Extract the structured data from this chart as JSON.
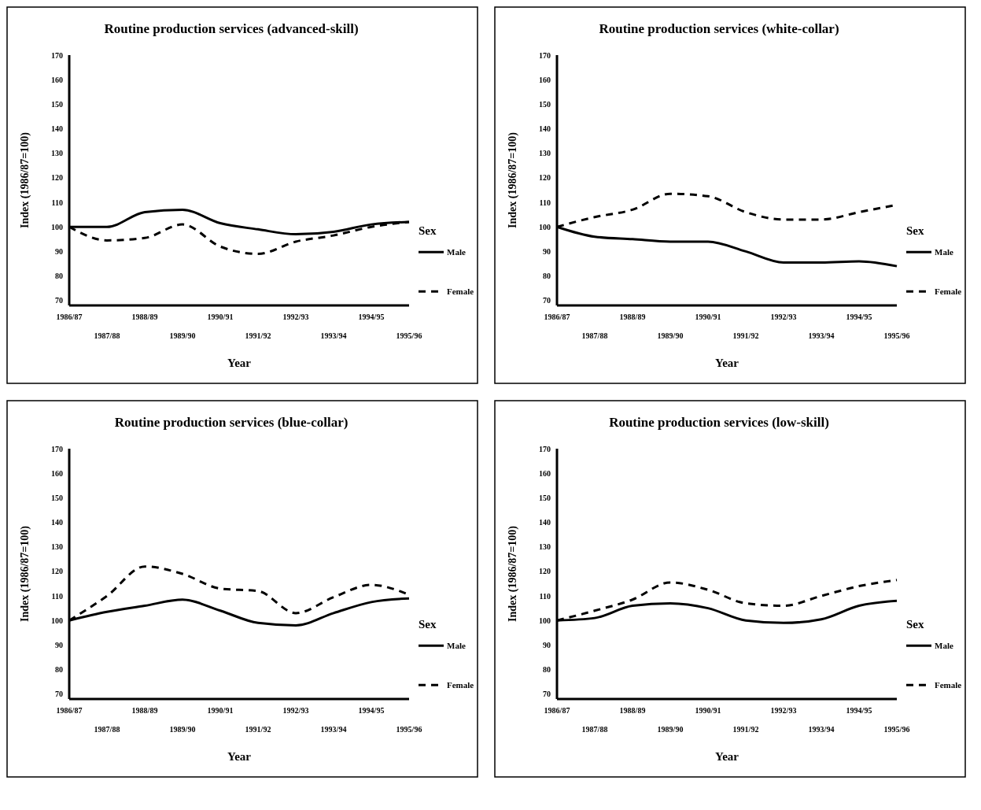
{
  "chart_data": [
    {
      "type": "line",
      "title": "Routine production services (advanced-skill)",
      "xlabel": "Year",
      "ylabel": "Index (1986/87=100)",
      "legend_title": "Sex",
      "legend": "right",
      "categories": [
        "1986/87",
        "1987/88",
        "1988/89",
        "1989/90",
        "1990/91",
        "1991/92",
        "1992/93",
        "1993/94",
        "1994/95",
        "1995/96"
      ],
      "ylim": [
        68,
        170
      ],
      "yticks": [
        70,
        80,
        90,
        100,
        110,
        120,
        130,
        140,
        150,
        160,
        170
      ],
      "series": [
        {
          "name": "Male",
          "color": "#000000",
          "line_style": "solid",
          "values": [
            100,
            100,
            106,
            107,
            101.5,
            99,
            97,
            98,
            101,
            102
          ]
        },
        {
          "name": "Female",
          "color": "#000000",
          "line_style": "dashed",
          "values": [
            100,
            94.5,
            95.5,
            101,
            92,
            89,
            94,
            96.5,
            100,
            102
          ]
        }
      ]
    },
    {
      "type": "line",
      "title": "Routine production services (white-collar)",
      "xlabel": "Year",
      "ylabel": "Index (1986/87=100)",
      "legend_title": "Sex",
      "legend": "right",
      "categories": [
        "1986/87",
        "1987/88",
        "1988/89",
        "1989/90",
        "1990/91",
        "1991/92",
        "1992/93",
        "1993/94",
        "1994/95",
        "1995/96"
      ],
      "ylim": [
        68,
        170
      ],
      "yticks": [
        70,
        80,
        90,
        100,
        110,
        120,
        130,
        140,
        150,
        160,
        170
      ],
      "series": [
        {
          "name": "Male",
          "color": "#000000",
          "line_style": "solid",
          "values": [
            100,
            96,
            95,
            94,
            94,
            90,
            85.5,
            85.5,
            86,
            84
          ]
        },
        {
          "name": "Female",
          "color": "#000000",
          "line_style": "dashed",
          "values": [
            100,
            104,
            107,
            113.5,
            112.5,
            106,
            103,
            103,
            106,
            109
          ]
        }
      ]
    },
    {
      "type": "line",
      "title": "Routine production services (blue-collar)",
      "xlabel": "Year",
      "ylabel": "Index (1986/87=100)",
      "legend_title": "Sex",
      "legend": "right",
      "categories": [
        "1986/87",
        "1987/88",
        "1988/89",
        "1989/90",
        "1990/91",
        "1991/92",
        "1992/93",
        "1993/94",
        "1994/95",
        "1995/96"
      ],
      "ylim": [
        68,
        170
      ],
      "yticks": [
        70,
        80,
        90,
        100,
        110,
        120,
        130,
        140,
        150,
        160,
        170
      ],
      "series": [
        {
          "name": "Male",
          "color": "#000000",
          "line_style": "solid",
          "values": [
            100,
            103.5,
            106,
            108.5,
            104,
            99,
            98,
            103,
            107.5,
            109
          ]
        },
        {
          "name": "Female",
          "color": "#000000",
          "line_style": "dashed",
          "values": [
            100,
            110,
            122,
            119,
            113,
            112,
            103,
            109.5,
            114.5,
            110.5
          ]
        }
      ]
    },
    {
      "type": "line",
      "title": "Routine production services (low-skill)",
      "xlabel": "Year",
      "ylabel": "Index (1986/87=100)",
      "legend_title": "Sex",
      "legend": "right",
      "categories": [
        "1986/87",
        "1987/88",
        "1988/89",
        "1989/90",
        "1990/91",
        "1991/92",
        "1992/93",
        "1993/94",
        "1994/95",
        "1995/96"
      ],
      "ylim": [
        68,
        170
      ],
      "yticks": [
        70,
        80,
        90,
        100,
        110,
        120,
        130,
        140,
        150,
        160,
        170
      ],
      "series": [
        {
          "name": "Male",
          "color": "#000000",
          "line_style": "solid",
          "values": [
            100,
            101,
            106,
            107,
            105,
            100,
            99,
            100.5,
            106,
            108
          ]
        },
        {
          "name": "Female",
          "color": "#000000",
          "line_style": "dashed",
          "values": [
            100,
            104,
            108.5,
            115.5,
            112.5,
            107,
            106,
            110,
            114,
            116.5
          ]
        }
      ]
    }
  ]
}
